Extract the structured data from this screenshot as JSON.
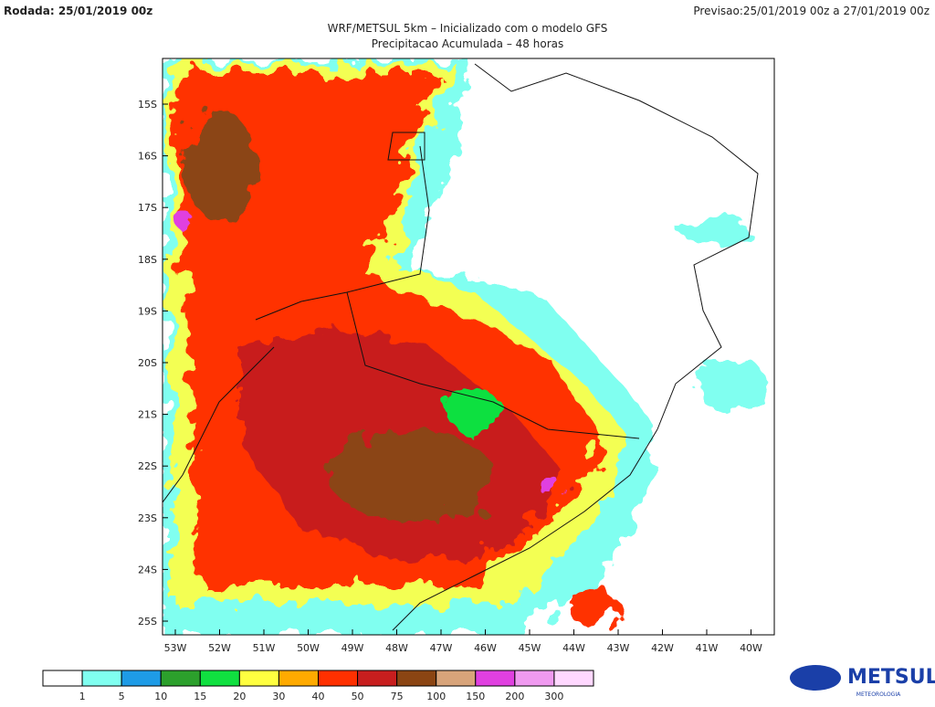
{
  "header": {
    "run": "Rodada: 25/01/2019 00z",
    "forecast": "Previsao:25/01/2019 00z a 27/01/2019 00z",
    "title": "WRF/METSUL 5km – Inicializado com o modelo GFS",
    "subtitle": "Precipitacao Acumulada – 48 horas"
  },
  "map": {
    "lat_labels": [
      "15S",
      "16S",
      "17S",
      "18S",
      "19S",
      "20S",
      "21S",
      "22S",
      "23S",
      "24S",
      "25S"
    ],
    "lon_labels": [
      "53W",
      "52W",
      "51W",
      "50W",
      "49W",
      "48W",
      "47W",
      "46W",
      "45W",
      "44W",
      "43W",
      "42W",
      "41W",
      "40W"
    ]
  },
  "legend": {
    "colors": [
      "#ffffff",
      "#80fff0",
      "#1e9be6",
      "#2ca02c",
      "#10e040",
      "#ffff40",
      "#ffaa00",
      "#ff3000",
      "#c81e1e",
      "#8b4513",
      "#d8a47a",
      "#e040e0",
      "#f09af0",
      "#ffd8ff"
    ],
    "labels": [
      "1",
      "5",
      "10",
      "15",
      "20",
      "30",
      "40",
      "50",
      "75",
      "100",
      "150",
      "200",
      "300"
    ]
  },
  "logo": {
    "name": "METSUL",
    "tagline": "METEOROLOGIA"
  }
}
